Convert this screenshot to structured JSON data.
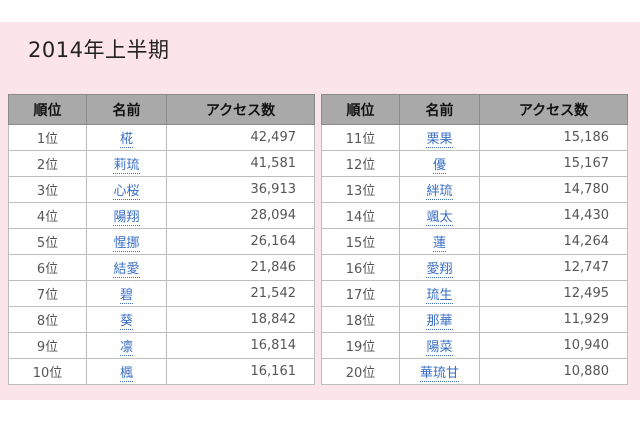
{
  "title": "2014年上半期",
  "headers": {
    "rank": "順位",
    "name": "名前",
    "access": "アクセス数"
  },
  "left": [
    {
      "rank": "1位",
      "name": "椛",
      "count": "42,497"
    },
    {
      "rank": "2位",
      "name": "莉琉",
      "count": "41,581"
    },
    {
      "rank": "3位",
      "name": "心桜",
      "count": "36,913"
    },
    {
      "rank": "4位",
      "name": "陽翔",
      "count": "28,094"
    },
    {
      "rank": "5位",
      "name": "惺挪",
      "count": "26,164"
    },
    {
      "rank": "6位",
      "name": "結愛",
      "count": "21,846"
    },
    {
      "rank": "7位",
      "name": "碧",
      "count": "21,542"
    },
    {
      "rank": "8位",
      "name": "葵",
      "count": "18,842"
    },
    {
      "rank": "9位",
      "name": "凛",
      "count": "16,814"
    },
    {
      "rank": "10位",
      "name": "楓",
      "count": "16,161"
    }
  ],
  "right": [
    {
      "rank": "11位",
      "name": "栗果",
      "count": "15,186"
    },
    {
      "rank": "12位",
      "name": "優",
      "count": "15,167"
    },
    {
      "rank": "13位",
      "name": "絆琉",
      "count": "14,780"
    },
    {
      "rank": "14位",
      "name": "颯太",
      "count": "14,430"
    },
    {
      "rank": "15位",
      "name": "蓮",
      "count": "14,264"
    },
    {
      "rank": "16位",
      "name": "愛翔",
      "count": "12,747"
    },
    {
      "rank": "17位",
      "name": "琉生",
      "count": "12,495"
    },
    {
      "rank": "18位",
      "name": "那華",
      "count": "11,929"
    },
    {
      "rank": "19位",
      "name": "陽菜",
      "count": "10,940"
    },
    {
      "rank": "20位",
      "name": "華琉甘",
      "count": "10,880"
    }
  ]
}
